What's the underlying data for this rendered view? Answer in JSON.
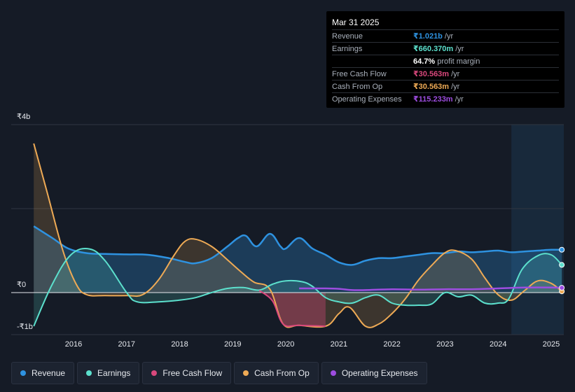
{
  "tooltip": {
    "date": "Mar 31 2025",
    "rows": [
      {
        "label": "Revenue",
        "value": "₹1.021b",
        "unit": "/yr",
        "color": "#2e92e0"
      },
      {
        "label": "Earnings",
        "value": "₹660.370m",
        "unit": "/yr",
        "color": "#5ce0cd"
      },
      {
        "label": "",
        "value": "64.7%",
        "unit": "profit margin",
        "color": "#ffffff"
      },
      {
        "label": "Free Cash Flow",
        "value": "₹30.563m",
        "unit": "/yr",
        "color": "#d9487c"
      },
      {
        "label": "Cash From Op",
        "value": "₹30.563m",
        "unit": "/yr",
        "color": "#eeaa55"
      },
      {
        "label": "Operating Expenses",
        "value": "₹115.233m",
        "unit": "/yr",
        "color": "#9d4de0"
      }
    ]
  },
  "legend": [
    {
      "label": "Revenue",
      "color": "#2e92e0"
    },
    {
      "label": "Earnings",
      "color": "#5ce0cd"
    },
    {
      "label": "Free Cash Flow",
      "color": "#d9487c"
    },
    {
      "label": "Cash From Op",
      "color": "#eeaa55"
    },
    {
      "label": "Operating Expenses",
      "color": "#9d4de0"
    }
  ],
  "chart_data": {
    "type": "area",
    "unit": "₹b",
    "y_ticks": [
      {
        "value": 4,
        "label": "₹4b"
      },
      {
        "value": 0,
        "label": "₹0"
      },
      {
        "value": -1,
        "label": "-₹1b"
      }
    ],
    "ylim": [
      -1,
      4
    ],
    "xlim": [
      2015.2,
      2025.25
    ],
    "x_ticks": [
      "2016",
      "2017",
      "2018",
      "2019",
      "2020",
      "2021",
      "2022",
      "2023",
      "2024",
      "2025"
    ],
    "grid": true,
    "legend_position": "bottom-left",
    "highlight_from": 2024.25,
    "series": [
      {
        "name": "Revenue",
        "color": "#2e92e0",
        "points": [
          [
            2015.25,
            1.58
          ],
          [
            2015.6,
            1.3
          ],
          [
            2015.9,
            1.05
          ],
          [
            2016.25,
            0.94
          ],
          [
            2016.6,
            0.92
          ],
          [
            2017.0,
            0.91
          ],
          [
            2017.4,
            0.9
          ],
          [
            2017.8,
            0.82
          ],
          [
            2018.1,
            0.73
          ],
          [
            2018.3,
            0.7
          ],
          [
            2018.6,
            0.82
          ],
          [
            2018.9,
            1.1
          ],
          [
            2019.1,
            1.3
          ],
          [
            2019.25,
            1.35
          ],
          [
            2019.45,
            1.1
          ],
          [
            2019.7,
            1.4
          ],
          [
            2019.9,
            1.1
          ],
          [
            2020.0,
            1.05
          ],
          [
            2020.25,
            1.3
          ],
          [
            2020.5,
            1.05
          ],
          [
            2020.75,
            0.9
          ],
          [
            2021.0,
            0.72
          ],
          [
            2021.25,
            0.66
          ],
          [
            2021.5,
            0.76
          ],
          [
            2021.75,
            0.82
          ],
          [
            2022.0,
            0.82
          ],
          [
            2022.25,
            0.86
          ],
          [
            2022.5,
            0.9
          ],
          [
            2022.75,
            0.94
          ],
          [
            2023.0,
            0.94
          ],
          [
            2023.25,
            0.98
          ],
          [
            2023.5,
            0.96
          ],
          [
            2023.75,
            0.98
          ],
          [
            2024.0,
            1.0
          ],
          [
            2024.25,
            0.96
          ],
          [
            2024.5,
            0.98
          ],
          [
            2024.75,
            1.0
          ],
          [
            2025.0,
            1.02
          ],
          [
            2025.2,
            1.021
          ]
        ]
      },
      {
        "name": "Earnings",
        "color": "#5ce0cd",
        "points": [
          [
            2015.25,
            -0.8
          ],
          [
            2015.6,
            0.2
          ],
          [
            2015.95,
            0.9
          ],
          [
            2016.3,
            1.04
          ],
          [
            2016.6,
            0.75
          ],
          [
            2017.0,
            0.0
          ],
          [
            2017.2,
            -0.22
          ],
          [
            2017.6,
            -0.22
          ],
          [
            2018.0,
            -0.18
          ],
          [
            2018.3,
            -0.12
          ],
          [
            2018.6,
            0.0
          ],
          [
            2018.9,
            0.1
          ],
          [
            2019.2,
            0.12
          ],
          [
            2019.5,
            0.06
          ],
          [
            2019.75,
            0.2
          ],
          [
            2020.0,
            0.28
          ],
          [
            2020.3,
            0.26
          ],
          [
            2020.5,
            0.15
          ],
          [
            2020.75,
            -0.12
          ],
          [
            2021.0,
            -0.22
          ],
          [
            2021.25,
            -0.25
          ],
          [
            2021.5,
            -0.12
          ],
          [
            2021.75,
            -0.06
          ],
          [
            2022.0,
            -0.25
          ],
          [
            2022.25,
            -0.3
          ],
          [
            2022.5,
            -0.3
          ],
          [
            2022.75,
            -0.27
          ],
          [
            2023.0,
            0.0
          ],
          [
            2023.25,
            -0.1
          ],
          [
            2023.5,
            -0.06
          ],
          [
            2023.75,
            -0.25
          ],
          [
            2024.0,
            -0.25
          ],
          [
            2024.2,
            -0.15
          ],
          [
            2024.45,
            0.55
          ],
          [
            2024.75,
            0.88
          ],
          [
            2025.0,
            0.9
          ],
          [
            2025.2,
            0.66
          ]
        ]
      },
      {
        "name": "Free Cash Flow",
        "color": "#d9487c",
        "points": [
          [
            2019.5,
            0.05
          ],
          [
            2019.75,
            -0.2
          ],
          [
            2019.95,
            -0.75
          ],
          [
            2020.25,
            -0.78
          ],
          [
            2020.75,
            -0.8
          ]
        ]
      },
      {
        "name": "Cash From Op",
        "color": "#eeaa55",
        "points": [
          [
            2015.25,
            3.55
          ],
          [
            2015.5,
            2.4
          ],
          [
            2015.8,
            1.0
          ],
          [
            2016.05,
            0.2
          ],
          [
            2016.25,
            -0.05
          ],
          [
            2016.6,
            -0.07
          ],
          [
            2017.0,
            -0.07
          ],
          [
            2017.3,
            -0.05
          ],
          [
            2017.6,
            0.3
          ],
          [
            2017.9,
            0.9
          ],
          [
            2018.1,
            1.22
          ],
          [
            2018.3,
            1.27
          ],
          [
            2018.6,
            1.1
          ],
          [
            2018.9,
            0.78
          ],
          [
            2019.15,
            0.5
          ],
          [
            2019.4,
            0.25
          ],
          [
            2019.7,
            0.08
          ],
          [
            2019.95,
            -0.75
          ],
          [
            2020.25,
            -0.78
          ],
          [
            2020.75,
            -0.8
          ],
          [
            2021.0,
            -0.5
          ],
          [
            2021.2,
            -0.35
          ],
          [
            2021.5,
            -0.8
          ],
          [
            2021.75,
            -0.75
          ],
          [
            2022.0,
            -0.5
          ],
          [
            2022.25,
            -0.15
          ],
          [
            2022.5,
            0.3
          ],
          [
            2022.75,
            0.65
          ],
          [
            2023.0,
            0.95
          ],
          [
            2023.2,
            1.0
          ],
          [
            2023.5,
            0.8
          ],
          [
            2023.75,
            0.35
          ],
          [
            2024.0,
            -0.05
          ],
          [
            2024.25,
            -0.18
          ],
          [
            2024.5,
            0.05
          ],
          [
            2024.75,
            0.28
          ],
          [
            2025.0,
            0.22
          ],
          [
            2025.2,
            0.03
          ]
        ]
      },
      {
        "name": "Operating Expenses",
        "color": "#9d4de0",
        "points": [
          [
            2020.25,
            0.1
          ],
          [
            2020.75,
            0.1
          ],
          [
            2021.0,
            0.09
          ],
          [
            2021.25,
            0.06
          ],
          [
            2021.5,
            0.06
          ],
          [
            2022.0,
            0.08
          ],
          [
            2022.5,
            0.07
          ],
          [
            2023.0,
            0.08
          ],
          [
            2023.5,
            0.08
          ],
          [
            2024.0,
            0.1
          ],
          [
            2024.5,
            0.12
          ],
          [
            2025.0,
            0.12
          ],
          [
            2025.2,
            0.115
          ]
        ]
      }
    ]
  }
}
